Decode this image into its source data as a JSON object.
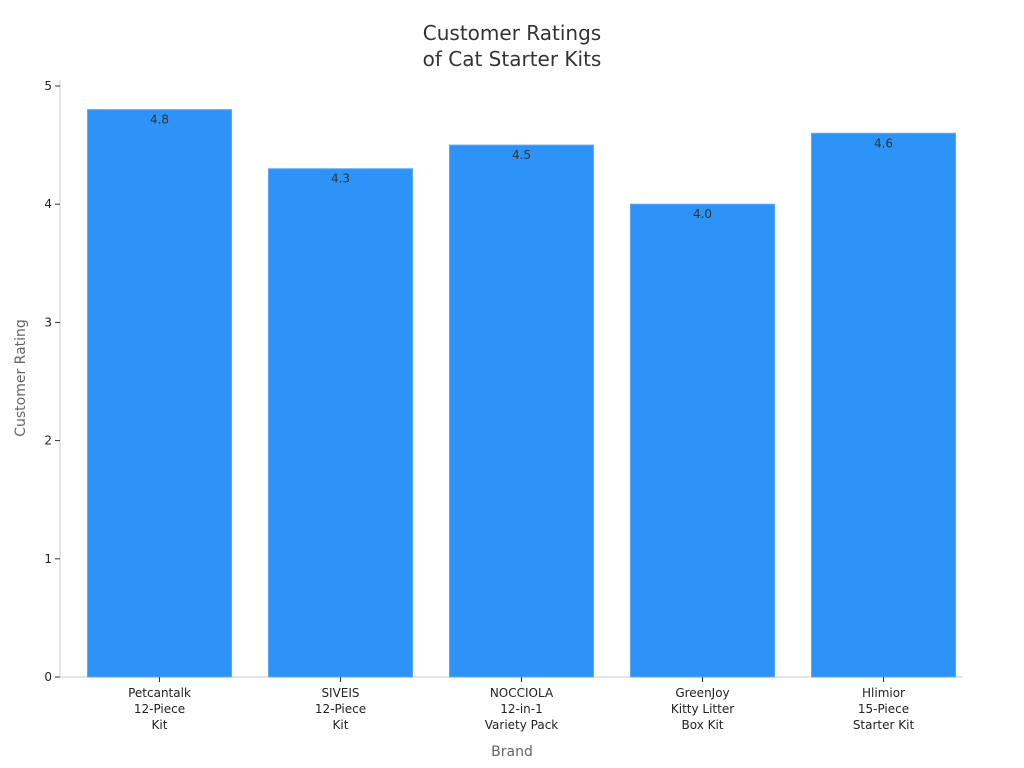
{
  "chart_data": {
    "type": "bar",
    "title": [
      "Customer Ratings",
      "of Cat Starter Kits"
    ],
    "xlabel": "Brand",
    "ylabel": "Customer Rating",
    "categories": [
      [
        "Petcantalk",
        "12-Piece",
        "Kit"
      ],
      [
        "SIVEIS",
        "12-Piece",
        "Kit"
      ],
      [
        "NOCCIOLA",
        "12-in-1",
        "Variety Pack"
      ],
      [
        "GreenJoy",
        "Kitty Litter",
        "Box Kit"
      ],
      [
        "Hlimior",
        "15-Piece",
        "Starter Kit"
      ]
    ],
    "values": [
      4.8,
      4.3,
      4.5,
      4.0,
      4.6
    ],
    "data_labels": [
      "4.8",
      "4.3",
      "4.5",
      "4.0",
      "4.6"
    ],
    "ylim": [
      0,
      5
    ],
    "yticks": [
      0,
      1,
      2,
      3,
      4,
      5
    ],
    "grid": false,
    "bar_color": "#2e93f7",
    "axis_color": "#cccccc"
  }
}
